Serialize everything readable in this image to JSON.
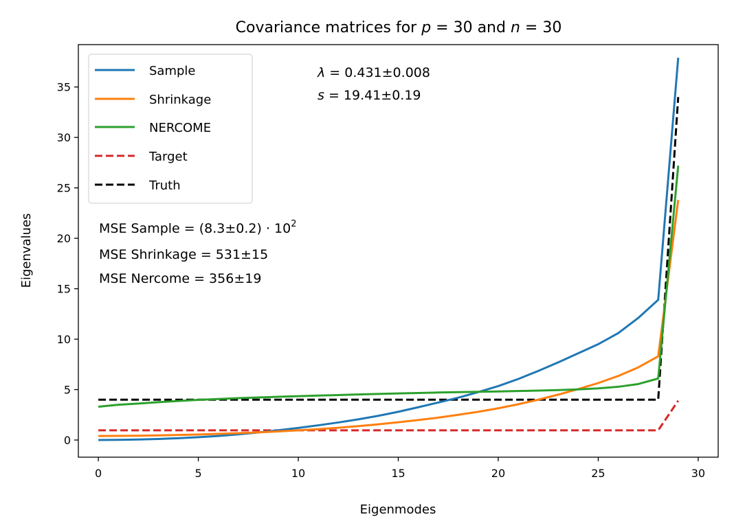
{
  "chart_data": {
    "type": "line",
    "title_prefix": "Covariance matrices for ",
    "title_p": "p",
    "title_mid": " = 30 and ",
    "title_n": "n",
    "title_suffix": " = 30",
    "xlabel": "Eigenmodes",
    "ylabel": "Eigenvalues",
    "xlim": [
      -1,
      31
    ],
    "ylim": [
      -1.7,
      39.2
    ],
    "xticks": [
      0,
      5,
      10,
      15,
      20,
      25,
      30
    ],
    "yticks": [
      0,
      5,
      10,
      15,
      20,
      25,
      30,
      35
    ],
    "legend_position": "top-left",
    "grid": false,
    "x": [
      0,
      1,
      2,
      3,
      4,
      5,
      6,
      7,
      8,
      9,
      10,
      11,
      12,
      13,
      14,
      15,
      16,
      17,
      18,
      19,
      20,
      21,
      22,
      23,
      24,
      25,
      26,
      27,
      28,
      29
    ],
    "series": [
      {
        "name": "Sample",
        "color": "#1f77b4",
        "dash": "solid",
        "values": [
          0.0,
          0.02,
          0.05,
          0.1,
          0.18,
          0.28,
          0.4,
          0.56,
          0.75,
          0.97,
          1.2,
          1.46,
          1.74,
          2.05,
          2.4,
          2.8,
          3.25,
          3.72,
          4.2,
          4.75,
          5.35,
          6.05,
          6.85,
          7.7,
          8.6,
          9.5,
          10.6,
          12.1,
          13.9,
          37.9
        ]
      },
      {
        "name": "Shrinkage",
        "color": "#ff7f0e",
        "dash": "solid",
        "values": [
          0.4,
          0.41,
          0.43,
          0.46,
          0.5,
          0.55,
          0.61,
          0.68,
          0.76,
          0.85,
          0.96,
          1.08,
          1.22,
          1.38,
          1.56,
          1.76,
          1.98,
          2.22,
          2.5,
          2.8,
          3.15,
          3.55,
          4.0,
          4.5,
          5.05,
          5.65,
          6.35,
          7.2,
          8.3,
          23.8
        ]
      },
      {
        "name": "NERCOME",
        "color": "#2ca02c",
        "dash": "solid",
        "values": [
          3.3,
          3.5,
          3.62,
          3.75,
          3.87,
          3.98,
          4.07,
          4.15,
          4.22,
          4.29,
          4.35,
          4.41,
          4.46,
          4.52,
          4.57,
          4.62,
          4.66,
          4.71,
          4.75,
          4.78,
          4.82,
          4.86,
          4.9,
          4.95,
          5.02,
          5.12,
          5.28,
          5.55,
          6.1,
          27.2
        ]
      },
      {
        "name": "Target",
        "color": "#d62728",
        "dash": "dashed",
        "values": [
          0.96,
          0.96,
          0.96,
          0.96,
          0.96,
          0.96,
          0.96,
          0.96,
          0.96,
          0.96,
          0.96,
          0.96,
          0.96,
          0.96,
          0.96,
          0.96,
          0.96,
          0.96,
          0.96,
          0.96,
          0.96,
          0.96,
          0.96,
          0.96,
          0.96,
          0.96,
          0.96,
          0.96,
          0.96,
          3.9
        ]
      },
      {
        "name": "Truth",
        "color": "#000000",
        "dash": "dashed",
        "values": [
          4.0,
          4.0,
          4.0,
          4.0,
          4.0,
          4.0,
          4.0,
          4.0,
          4.0,
          4.0,
          4.0,
          4.0,
          4.0,
          4.0,
          4.0,
          4.0,
          4.0,
          4.0,
          4.0,
          4.0,
          4.0,
          4.0,
          4.0,
          4.0,
          4.0,
          4.0,
          4.0,
          4.0,
          4.0,
          34.0
        ]
      }
    ],
    "annotations": {
      "lambda_sym": "λ",
      "lambda_val": " = 0.431±0.008",
      "s_sym": "s",
      "s_val": " = 19.41±0.19",
      "mse_sample": "MSE Sample  = (8.3±0.2) · 10",
      "mse_sample_exp": "2",
      "mse_shrinkage": "MSE Shrinkage  = 531±15",
      "mse_nercome": "MSE Nercome  = 356±19"
    }
  }
}
